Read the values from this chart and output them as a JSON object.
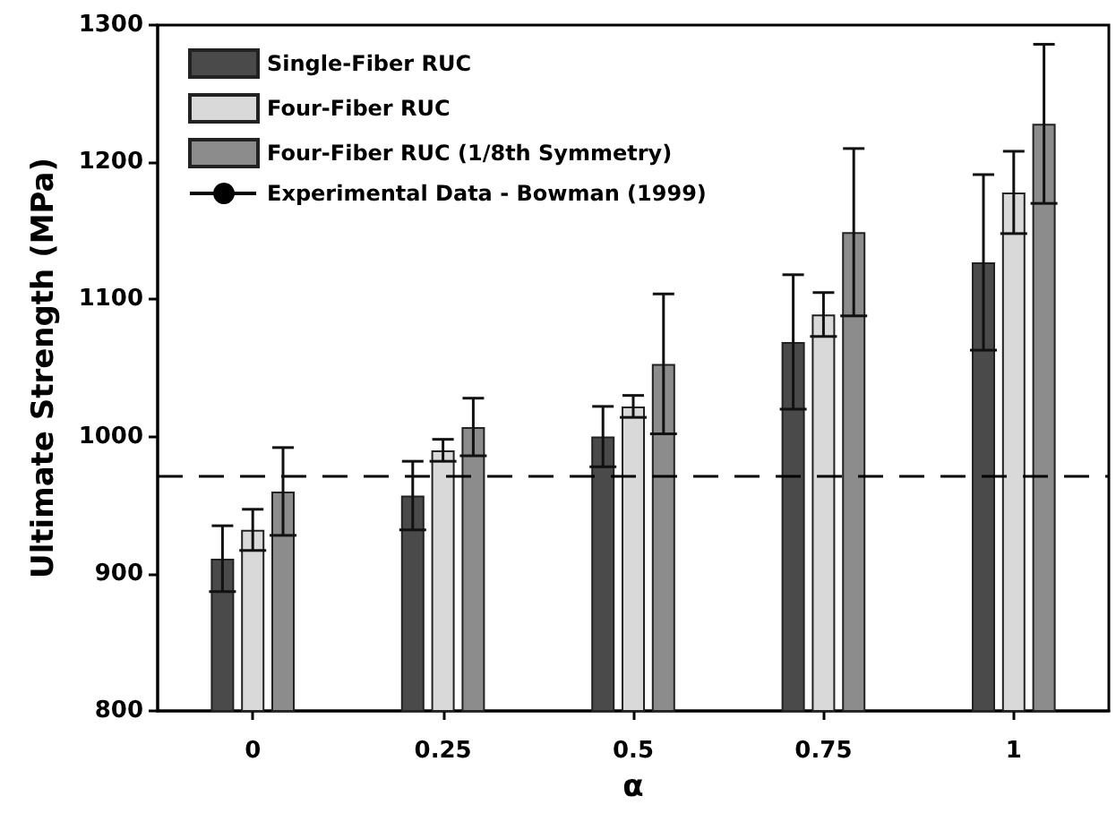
{
  "chart_data": {
    "type": "bar",
    "xlabel": "α",
    "ylabel": "Ultimate Strength (MPa)",
    "categories": [
      "0",
      "0.25",
      "0.5",
      "0.75",
      "1"
    ],
    "series": [
      {
        "name": "Single-Fiber RUC",
        "color": "#4a4a4a",
        "values": [
          911,
          957,
          1000,
          1069,
          1127
        ],
        "errors": [
          24,
          25,
          22,
          49,
          64
        ]
      },
      {
        "name": "Four-Fiber RUC",
        "color": "#d9d9d9",
        "values": [
          932,
          990,
          1022,
          1089,
          1178
        ],
        "errors": [
          15,
          8,
          8,
          16,
          30
        ]
      },
      {
        "name": "Four-Fiber RUC (1/8th Symmetry)",
        "color": "#8c8c8c",
        "values": [
          960,
          1007,
          1053,
          1149,
          1228
        ],
        "errors": [
          32,
          21,
          51,
          61,
          58
        ]
      }
    ],
    "ref_lines": [
      {
        "axis": "y",
        "value": 971,
        "label": "Experimental Data - Bowman (1999)",
        "color": "#000000",
        "line_style": "dashed"
      }
    ],
    "ylim": [
      800,
      1300
    ],
    "yticks": [
      800,
      900,
      1000,
      1100,
      1200,
      1300
    ],
    "grid": false,
    "legend": "top left"
  }
}
